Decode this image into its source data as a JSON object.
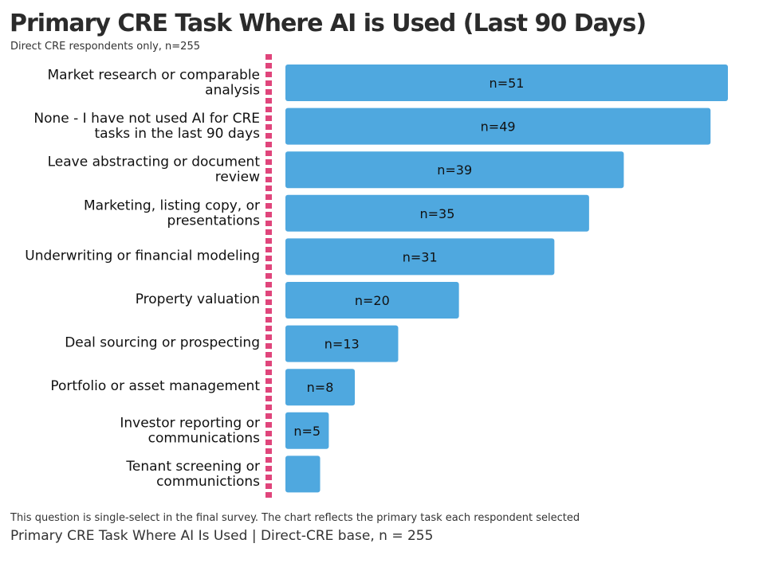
{
  "title": "Primary CRE Task Where AI is Used (Last 90 Days)",
  "subtitle": "Direct CRE respondents only, n=255",
  "footnote": "This question is single-select in the final survey. The chart reflects the primary task each respondent selected",
  "caption": "Primary CRE Task Where AI Is Used | Direct-CRE base, n = 255",
  "colors": {
    "bar": "#4fa8df",
    "axis": "#e0457b",
    "label": "#111111"
  },
  "chart_data": {
    "type": "bar",
    "orientation": "horizontal",
    "categories": [
      [
        "Market research or comparable",
        "analysis"
      ],
      [
        "None - I have not used AI for CRE",
        "tasks in the last 90 days"
      ],
      [
        "Leave abstracting or document",
        "review"
      ],
      [
        "Marketing, listing copy, or",
        "presentations"
      ],
      [
        "Underwriting or financial modeling"
      ],
      [
        "Property valuation"
      ],
      [
        "Deal sourcing or prospecting"
      ],
      [
        "Portfolio or asset management"
      ],
      [
        "Investor reporting or",
        "communications"
      ],
      [
        "Tenant screening or",
        "communictions"
      ]
    ],
    "values": [
      51,
      49,
      39,
      35,
      31,
      20,
      13,
      8,
      5,
      4
    ],
    "data_labels": [
      "n=51",
      "n=49",
      "n=39",
      "n=35",
      "n=31",
      "n=20",
      "n=13",
      "n=8",
      "n=5",
      ""
    ],
    "xlim": [
      0,
      51
    ],
    "grid": false,
    "axis_style": "dotted"
  }
}
